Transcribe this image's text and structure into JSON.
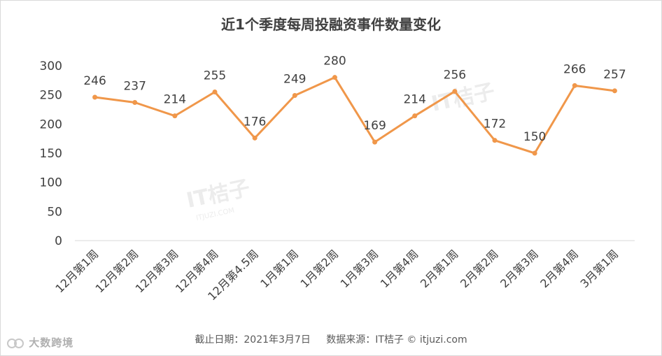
{
  "chart_data": {
    "type": "line",
    "title": "近1个季度每周投融资事件数量变化",
    "categories": [
      "12月第1周",
      "12月第2周",
      "12月第3周",
      "12月第4周",
      "12月第4.5周",
      "1月第1周",
      "1月第2周",
      "1月第3周",
      "1月第4周",
      "2月第1周",
      "2月第2周",
      "2月第3周",
      "2月第4周",
      "3月第1周"
    ],
    "series": [
      {
        "values": [
          246,
          237,
          214,
          255,
          176,
          249,
          280,
          169,
          214,
          256,
          172,
          150,
          266,
          257
        ]
      }
    ],
    "ylim": [
      0,
      300
    ],
    "yticks": [
      0,
      50,
      100,
      150,
      200,
      250,
      300
    ],
    "grid": false,
    "legend": "none",
    "colors": {
      "line": "#F0974A",
      "axis": "#d9d9d9",
      "text": "#404040"
    }
  },
  "footer": {
    "date_text": "截止日期：2021年3月7日",
    "source_text": "数据来源：IT桔子 © itjuzi.com"
  },
  "watermarks": [
    "IT桔子",
    "ITJUZI.COM"
  ],
  "brand": {
    "text": "大数跨境",
    "icon": "brand-logo-icon"
  }
}
